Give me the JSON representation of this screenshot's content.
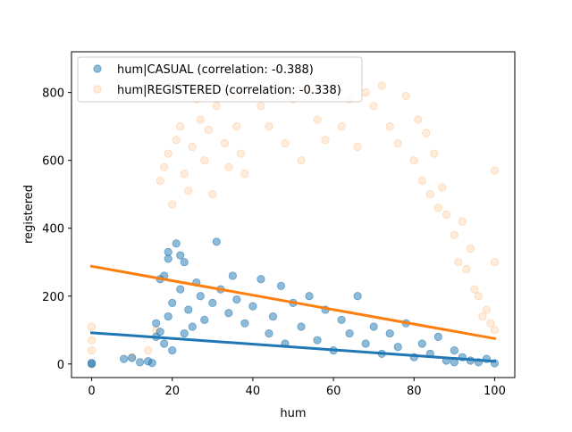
{
  "chart_data": {
    "type": "scatter",
    "title": "",
    "xlabel": "hum",
    "ylabel": "registered",
    "xlim": [
      -5,
      105
    ],
    "ylim": [
      -40,
      920
    ],
    "xticks": [
      0,
      20,
      40,
      60,
      80,
      100
    ],
    "yticks": [
      0,
      200,
      400,
      600,
      800
    ],
    "grid": false,
    "legend_position": "top-left",
    "series": [
      {
        "name": "hum|CASUAL (correlation: -0.388)",
        "color": "#1f77b4",
        "alpha": 0.5,
        "marker": "circle",
        "points": [
          [
            0,
            0
          ],
          [
            0,
            3
          ],
          [
            8,
            15
          ],
          [
            10,
            18
          ],
          [
            12,
            5
          ],
          [
            14,
            8
          ],
          [
            15,
            3
          ],
          [
            16,
            80
          ],
          [
            16,
            120
          ],
          [
            17,
            250
          ],
          [
            17,
            95
          ],
          [
            18,
            260
          ],
          [
            18,
            60
          ],
          [
            19,
            330
          ],
          [
            19,
            310
          ],
          [
            19,
            140
          ],
          [
            20,
            180
          ],
          [
            20,
            40
          ],
          [
            21,
            355
          ],
          [
            22,
            320
          ],
          [
            22,
            220
          ],
          [
            23,
            300
          ],
          [
            23,
            90
          ],
          [
            24,
            160
          ],
          [
            25,
            110
          ],
          [
            26,
            240
          ],
          [
            27,
            200
          ],
          [
            28,
            130
          ],
          [
            30,
            180
          ],
          [
            31,
            360
          ],
          [
            32,
            220
          ],
          [
            34,
            150
          ],
          [
            35,
            260
          ],
          [
            36,
            190
          ],
          [
            38,
            120
          ],
          [
            40,
            170
          ],
          [
            42,
            250
          ],
          [
            44,
            90
          ],
          [
            45,
            140
          ],
          [
            47,
            230
          ],
          [
            48,
            60
          ],
          [
            50,
            180
          ],
          [
            52,
            110
          ],
          [
            54,
            200
          ],
          [
            56,
            70
          ],
          [
            58,
            160
          ],
          [
            60,
            40
          ],
          [
            62,
            130
          ],
          [
            64,
            90
          ],
          [
            66,
            200
          ],
          [
            68,
            60
          ],
          [
            70,
            110
          ],
          [
            72,
            30
          ],
          [
            74,
            90
          ],
          [
            76,
            50
          ],
          [
            78,
            120
          ],
          [
            80,
            20
          ],
          [
            82,
            60
          ],
          [
            84,
            30
          ],
          [
            86,
            80
          ],
          [
            88,
            10
          ],
          [
            90,
            40
          ],
          [
            90,
            5
          ],
          [
            92,
            20
          ],
          [
            94,
            10
          ],
          [
            96,
            5
          ],
          [
            98,
            15
          ],
          [
            100,
            2
          ]
        ],
        "trend": {
          "x": [
            0,
            100
          ],
          "y": [
            92,
            8
          ]
        }
      },
      {
        "name": "hum|REGISTERED (correlation: -0.338)",
        "color": "#ff7f0e",
        "alpha": 0.15,
        "marker": "circle",
        "points": [
          [
            0,
            0
          ],
          [
            0,
            40
          ],
          [
            0,
            70
          ],
          [
            0,
            110
          ],
          [
            10,
            20
          ],
          [
            14,
            40
          ],
          [
            16,
            100
          ],
          [
            17,
            540
          ],
          [
            18,
            580
          ],
          [
            19,
            620
          ],
          [
            20,
            470
          ],
          [
            21,
            660
          ],
          [
            22,
            700
          ],
          [
            23,
            560
          ],
          [
            24,
            510
          ],
          [
            25,
            640
          ],
          [
            26,
            780
          ],
          [
            27,
            720
          ],
          [
            28,
            600
          ],
          [
            29,
            690
          ],
          [
            30,
            500
          ],
          [
            31,
            760
          ],
          [
            32,
            820
          ],
          [
            33,
            650
          ],
          [
            34,
            580
          ],
          [
            35,
            790
          ],
          [
            36,
            700
          ],
          [
            37,
            620
          ],
          [
            38,
            560
          ],
          [
            40,
            810
          ],
          [
            42,
            760
          ],
          [
            44,
            700
          ],
          [
            46,
            820
          ],
          [
            48,
            650
          ],
          [
            50,
            780
          ],
          [
            52,
            600
          ],
          [
            54,
            810
          ],
          [
            56,
            720
          ],
          [
            58,
            660
          ],
          [
            60,
            820
          ],
          [
            62,
            700
          ],
          [
            64,
            780
          ],
          [
            66,
            640
          ],
          [
            68,
            800
          ],
          [
            70,
            760
          ],
          [
            72,
            820
          ],
          [
            74,
            700
          ],
          [
            76,
            650
          ],
          [
            78,
            790
          ],
          [
            80,
            600
          ],
          [
            81,
            720
          ],
          [
            82,
            540
          ],
          [
            83,
            680
          ],
          [
            84,
            500
          ],
          [
            85,
            620
          ],
          [
            86,
            460
          ],
          [
            87,
            520
          ],
          [
            88,
            440
          ],
          [
            90,
            380
          ],
          [
            91,
            300
          ],
          [
            92,
            420
          ],
          [
            93,
            280
          ],
          [
            94,
            340
          ],
          [
            95,
            220
          ],
          [
            96,
            200
          ],
          [
            97,
            140
          ],
          [
            98,
            160
          ],
          [
            99,
            120
          ],
          [
            100,
            570
          ],
          [
            100,
            300
          ],
          [
            100,
            100
          ]
        ],
        "trend": {
          "x": [
            0,
            100
          ],
          "y": [
            288,
            75
          ]
        }
      }
    ]
  }
}
